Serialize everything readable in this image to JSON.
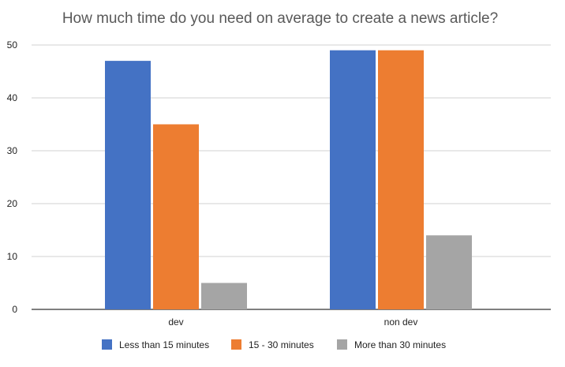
{
  "chart_data": {
    "type": "bar",
    "title": "How much time do you need on average to create a news article?",
    "xlabel": "",
    "ylabel": "",
    "categories": [
      "dev",
      "non dev"
    ],
    "series": [
      {
        "name": "Less than 15 minutes",
        "values": [
          47,
          49
        ],
        "color": "#4472c4"
      },
      {
        "name": "15 - 30 minutes",
        "values": [
          35,
          49
        ],
        "color": "#ed7d31"
      },
      {
        "name": "More than 30 minutes",
        "values": [
          5,
          14
        ],
        "color": "#a5a5a5"
      }
    ],
    "ylim": [
      0,
      50
    ],
    "yticks": [
      0,
      10,
      20,
      30,
      40,
      50
    ],
    "grid": true,
    "legend_position": "bottom"
  }
}
